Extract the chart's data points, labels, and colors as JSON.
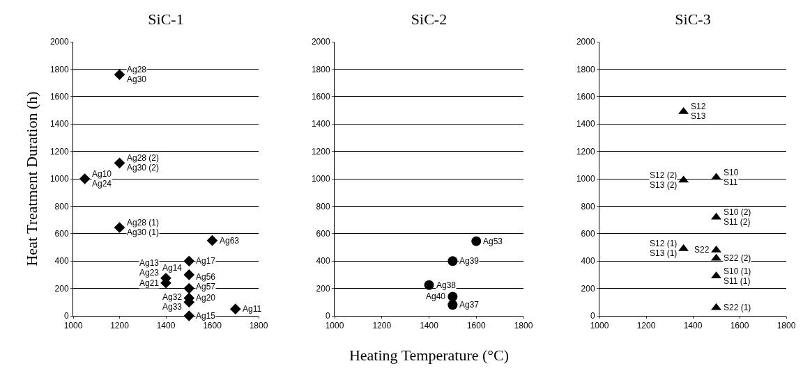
{
  "chart_data": [
    {
      "type": "scatter",
      "title": "SiC-1",
      "ylabel": "Heat Treatment Duration (h)",
      "marker": "diamond",
      "grid": "y",
      "xlim": [
        1000,
        1800
      ],
      "xticks": [
        1000,
        1200,
        1400,
        1600,
        1800
      ],
      "ylim": [
        0,
        2000
      ],
      "yticks": [
        0,
        200,
        400,
        600,
        800,
        1000,
        1200,
        1400,
        1600,
        1800,
        2000
      ],
      "series": [
        {
          "color": "#000000",
          "x": [
            1200,
            1200,
            1050,
            1200,
            1600,
            1500,
            1400,
            1500,
            1400,
            1500,
            1500,
            1500,
            1500,
            1700
          ],
          "values": [
            1760,
            1115,
            1000,
            645,
            550,
            400,
            275,
            300,
            240,
            200,
            130,
            100,
            0,
            50
          ]
        }
      ],
      "annotations": [
        {
          "text": "Ag28",
          "x": 1200,
          "y": 1760
        },
        {
          "text": "Ag30",
          "x": 1200,
          "y": 1760
        },
        {
          "text": "Ag28 (2)",
          "x": 1200,
          "y": 1115
        },
        {
          "text": "Ag30 (2)",
          "x": 1200,
          "y": 1115
        },
        {
          "text": "Ag10",
          "x": 1050,
          "y": 1000
        },
        {
          "text": "Ag24",
          "x": 1050,
          "y": 1000
        },
        {
          "text": "Ag28 (1)",
          "x": 1200,
          "y": 645
        },
        {
          "text": "Ag30 (1)",
          "x": 1200,
          "y": 645
        },
        {
          "text": "Ag63",
          "x": 1600,
          "y": 550
        },
        {
          "text": "Ag17",
          "x": 1500,
          "y": 400
        },
        {
          "text": "Ag13",
          "x": 1400,
          "y": 275
        },
        {
          "text": "Ag23",
          "x": 1400,
          "y": 275
        },
        {
          "text": "Ag14",
          "x": 1500,
          "y": 300
        },
        {
          "text": "Ag21",
          "x": 1400,
          "y": 240
        },
        {
          "text": "Ag56",
          "x": 1500,
          "y": 200
        },
        {
          "text": "Ag57",
          "x": 1500,
          "y": 200
        },
        {
          "text": "Ag20",
          "x": 1500,
          "y": 130
        },
        {
          "text": "Ag32",
          "x": 1500,
          "y": 100
        },
        {
          "text": "Ag33",
          "x": 1500,
          "y": 100
        },
        {
          "text": "Ag15",
          "x": 1500,
          "y": 0
        },
        {
          "text": "Ag11",
          "x": 1700,
          "y": 50
        }
      ]
    },
    {
      "type": "scatter",
      "title": "SiC-2",
      "xlabel": "Heating Temperature (°C)",
      "marker": "circle",
      "grid": "y",
      "xlim": [
        1000,
        1800
      ],
      "xticks": [
        1000,
        1200,
        1400,
        1600,
        1800
      ],
      "ylim": [
        0,
        2000
      ],
      "yticks": [
        0,
        200,
        400,
        600,
        800,
        1000,
        1200,
        1400,
        1600,
        1800,
        2000
      ],
      "series": [
        {
          "color": "#000000",
          "x": [
            1600,
            1500,
            1400,
            1500,
            1500
          ],
          "values": [
            545,
            400,
            225,
            140,
            80
          ]
        }
      ],
      "annotations": [
        {
          "text": "Ag53",
          "x": 1600,
          "y": 545
        },
        {
          "text": "Ag39",
          "x": 1500,
          "y": 400
        },
        {
          "text": "Ag38",
          "x": 1400,
          "y": 225
        },
        {
          "text": "Ag40",
          "x": 1500,
          "y": 140
        },
        {
          "text": "Ag37",
          "x": 1500,
          "y": 80
        }
      ]
    },
    {
      "type": "scatter",
      "title": "SiC-3",
      "marker": "triangle",
      "grid": "y",
      "xlim": [
        1000,
        1800
      ],
      "xticks": [
        1000,
        1200,
        1400,
        1600,
        1800
      ],
      "ylim": [
        0,
        2000
      ],
      "yticks": [
        0,
        200,
        400,
        600,
        800,
        1000,
        1200,
        1400,
        1600,
        1800,
        2000
      ],
      "series": [
        {
          "color": "#000000",
          "x": [
            1360,
            1360,
            1500,
            1500,
            1360,
            1500,
            1500,
            1500,
            1500
          ],
          "values": [
            1490,
            990,
            1010,
            720,
            490,
            480,
            420,
            290,
            60
          ]
        }
      ],
      "annotations": [
        {
          "text": "S12",
          "x": 1360,
          "y": 1490
        },
        {
          "text": "S13",
          "x": 1360,
          "y": 1490
        },
        {
          "text": "S12 (2)",
          "x": 1360,
          "y": 990
        },
        {
          "text": "S13 (2)",
          "x": 1360,
          "y": 990
        },
        {
          "text": "S10",
          "x": 1500,
          "y": 1010
        },
        {
          "text": "S11",
          "x": 1500,
          "y": 1010
        },
        {
          "text": "S10 (2)",
          "x": 1500,
          "y": 720
        },
        {
          "text": "S11 (2)",
          "x": 1500,
          "y": 720
        },
        {
          "text": "S12 (1)",
          "x": 1360,
          "y": 490
        },
        {
          "text": "S13 (1)",
          "x": 1360,
          "y": 490
        },
        {
          "text": "S22",
          "x": 1500,
          "y": 480
        },
        {
          "text": "S22 (2)",
          "x": 1500,
          "y": 420
        },
        {
          "text": "S10 (1)",
          "x": 1500,
          "y": 290
        },
        {
          "text": "S11 (1)",
          "x": 1500,
          "y": 290
        },
        {
          "text": "S22 (1)",
          "x": 1500,
          "y": 60
        }
      ]
    }
  ]
}
